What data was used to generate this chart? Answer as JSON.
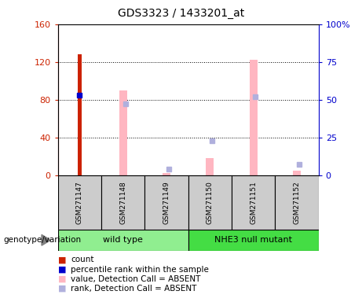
{
  "title": "GDS3323 / 1433201_at",
  "samples": [
    "GSM271147",
    "GSM271148",
    "GSM271149",
    "GSM271150",
    "GSM271151",
    "GSM271152"
  ],
  "count_values": [
    128,
    null,
    null,
    null,
    null,
    null
  ],
  "count_color": "#CC2200",
  "percentile_rank_values": [
    53,
    null,
    null,
    null,
    null,
    null
  ],
  "percentile_rank_color": "#0000CC",
  "absent_value_values": [
    null,
    90,
    2,
    18,
    122,
    5
  ],
  "absent_value_color": "#FFB6C1",
  "absent_rank_values": [
    null,
    47,
    4,
    23,
    52,
    7
  ],
  "absent_rank_color": "#B0B0DD",
  "ylim_left": [
    0,
    160
  ],
  "ylim_right": [
    0,
    100
  ],
  "yticks_left": [
    0,
    40,
    80,
    120,
    160
  ],
  "yticks_right": [
    0,
    25,
    50,
    75,
    100
  ],
  "ytick_labels_left": [
    "0",
    "40",
    "80",
    "120",
    "160"
  ],
  "ytick_labels_right": [
    "0",
    "25",
    "50",
    "75",
    "100%"
  ],
  "legend_items": [
    {
      "label": "count",
      "color": "#CC2200"
    },
    {
      "label": "percentile rank within the sample",
      "color": "#0000CC"
    },
    {
      "label": "value, Detection Call = ABSENT",
      "color": "#FFB6C1"
    },
    {
      "label": "rank, Detection Call = ABSENT",
      "color": "#B0B0DD"
    }
  ],
  "genotype_label": "genotype/variation",
  "sample_box_color": "#CCCCCC",
  "left_axis_color": "#CC2200",
  "right_axis_color": "#0000CC",
  "group1_color": "#90EE90",
  "group2_color": "#44DD44",
  "group1_name": "wild type",
  "group2_name": "NHE3 null mutant"
}
